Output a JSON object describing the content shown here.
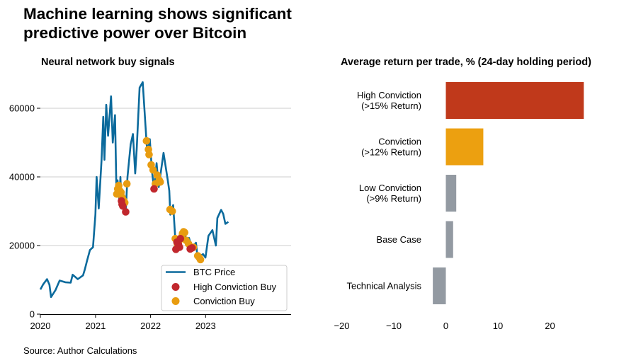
{
  "title": "Machine learning shows significant predictive power over Bitcoin",
  "source": "Source: Author Calculations",
  "colors": {
    "btc": "#0b6a9c",
    "high": "#c1272d",
    "conviction": "#e89c10",
    "grey": "#9498a0",
    "bar_high": "#c0391b",
    "bar_conv": "#eca010",
    "bar_other": "#939aa2",
    "grid": "#cccccc"
  },
  "chart_data": [
    {
      "type": "line",
      "title": "Neural network buy signals",
      "x_ticks": [
        "2020",
        "2021",
        "2022",
        "2023"
      ],
      "y_ticks": [
        "0",
        "20000",
        "40000",
        "60000"
      ],
      "xlim": [
        "2020-01-01",
        "2023-06-01"
      ],
      "ylim": [
        0,
        70000
      ],
      "grid": "horizontal",
      "legend": {
        "position": "bottom-right",
        "entries": [
          "BTC Price",
          "High Conviction Buy",
          "Conviction Buy"
        ]
      },
      "series": [
        {
          "name": "BTC Price",
          "points": [
            [
              "2020-01-01",
              7200
            ],
            [
              "2020-01-20",
              8700
            ],
            [
              "2020-02-14",
              10200
            ],
            [
              "2020-03-01",
              8600
            ],
            [
              "2020-03-12",
              5000
            ],
            [
              "2020-04-10",
              7000
            ],
            [
              "2020-05-08",
              9800
            ],
            [
              "2020-06-15",
              9300
            ],
            [
              "2020-07-20",
              9200
            ],
            [
              "2020-08-02",
              11500
            ],
            [
              "2020-09-05",
              10200
            ],
            [
              "2020-10-10",
              11300
            ],
            [
              "2020-10-21",
              12900
            ],
            [
              "2020-11-05",
              15500
            ],
            [
              "2020-11-25",
              18700
            ],
            [
              "2020-12-15",
              19500
            ],
            [
              "2020-12-31",
              29000
            ],
            [
              "2021-01-08",
              40000
            ],
            [
              "2021-01-22",
              30800
            ],
            [
              "2021-02-10",
              45000
            ],
            [
              "2021-02-21",
              57500
            ],
            [
              "2021-03-01",
              45000
            ],
            [
              "2021-03-13",
              61000
            ],
            [
              "2021-03-25",
              52000
            ],
            [
              "2021-04-14",
              63500
            ],
            [
              "2021-04-25",
              50000
            ],
            [
              "2021-05-10",
              58000
            ],
            [
              "2021-05-19",
              37000
            ],
            [
              "2021-05-27",
              39000
            ],
            [
              "2021-06-08",
              33000
            ],
            [
              "2021-06-15",
              40000
            ],
            [
              "2021-06-22",
              32000
            ],
            [
              "2021-07-05",
              35000
            ],
            [
              "2021-07-20",
              29800
            ],
            [
              "2021-08-01",
              40000
            ],
            [
              "2021-08-22",
              49500
            ],
            [
              "2021-09-06",
              52500
            ],
            [
              "2021-09-21",
              41000
            ],
            [
              "2021-10-01",
              48000
            ],
            [
              "2021-10-20",
              66000
            ],
            [
              "2021-11-10",
              67600
            ],
            [
              "2021-11-28",
              55000
            ],
            [
              "2021-12-10",
              47000
            ],
            [
              "2021-12-27",
              51000
            ],
            [
              "2022-01-10",
              41800
            ],
            [
              "2022-01-24",
              36500
            ],
            [
              "2022-02-10",
              44000
            ],
            [
              "2022-02-24",
              37000
            ],
            [
              "2022-03-28",
              47000
            ],
            [
              "2022-04-25",
              39000
            ],
            [
              "2022-05-05",
              36000
            ],
            [
              "2022-05-12",
              29000
            ],
            [
              "2022-05-31",
              31800
            ],
            [
              "2022-06-14",
              22000
            ],
            [
              "2022-06-18",
              19000
            ],
            [
              "2022-07-01",
              20000
            ],
            [
              "2022-07-30",
              23800
            ],
            [
              "2022-08-13",
              24300
            ],
            [
              "2022-09-07",
              19000
            ],
            [
              "2022-09-13",
              22200
            ],
            [
              "2022-10-01",
              19300
            ],
            [
              "2022-10-29",
              20800
            ],
            [
              "2022-11-09",
              16500
            ],
            [
              "2022-12-15",
              17500
            ],
            [
              "2022-12-31",
              16500
            ],
            [
              "2023-01-20",
              22800
            ],
            [
              "2023-02-15",
              24500
            ],
            [
              "2023-03-10",
              20000
            ],
            [
              "2023-03-20",
              28000
            ],
            [
              "2023-04-14",
              30400
            ],
            [
              "2023-04-28",
              29200
            ],
            [
              "2023-05-12",
              26300
            ],
            [
              "2023-05-25",
              26700
            ],
            [
              "2023-06-01",
              26900
            ]
          ]
        },
        {
          "name": "High Conviction Buy",
          "points": [
            [
              "2021-06-22",
              33000
            ],
            [
              "2021-06-26",
              32000
            ],
            [
              "2021-07-01",
              31500
            ],
            [
              "2021-07-20",
              29800
            ],
            [
              "2022-01-24",
              36500
            ],
            [
              "2022-06-18",
              18900
            ],
            [
              "2022-06-25",
              21000
            ],
            [
              "2022-07-05",
              20300
            ],
            [
              "2022-07-12",
              19500
            ],
            [
              "2022-07-18",
              22000
            ],
            [
              "2022-09-21",
              19000
            ],
            [
              "2022-10-03",
              19300
            ]
          ]
        },
        {
          "name": "Conviction Buy",
          "points": [
            [
              "2021-05-22",
              35000
            ],
            [
              "2021-05-28",
              36500
            ],
            [
              "2021-06-04",
              37500
            ],
            [
              "2021-06-10",
              36000
            ],
            [
              "2021-06-19",
              35500
            ],
            [
              "2021-06-27",
              34000
            ],
            [
              "2021-07-08",
              33000
            ],
            [
              "2021-07-14",
              32500
            ],
            [
              "2021-07-28",
              38000
            ],
            [
              "2021-12-05",
              50500
            ],
            [
              "2021-12-18",
              48000
            ],
            [
              "2021-12-22",
              46500
            ],
            [
              "2022-01-05",
              43500
            ],
            [
              "2022-01-18",
              42000
            ],
            [
              "2022-02-02",
              38000
            ],
            [
              "2022-02-14",
              40500
            ],
            [
              "2022-02-28",
              39000
            ],
            [
              "2022-03-06",
              38500
            ],
            [
              "2022-05-10",
              30500
            ],
            [
              "2022-05-25",
              30000
            ],
            [
              "2022-06-14",
              22000
            ],
            [
              "2022-06-28",
              20500
            ],
            [
              "2022-07-10",
              21500
            ],
            [
              "2022-07-26",
              22500
            ],
            [
              "2022-08-01",
              23500
            ],
            [
              "2022-08-08",
              24000
            ],
            [
              "2022-08-15",
              23800
            ],
            [
              "2022-08-25",
              21500
            ],
            [
              "2022-09-10",
              20500
            ],
            [
              "2022-10-12",
              19500
            ],
            [
              "2022-11-10",
              17000
            ],
            [
              "2022-11-20",
              16500
            ],
            [
              "2022-11-28",
              15900
            ]
          ]
        }
      ]
    },
    {
      "type": "bar",
      "orientation": "horizontal",
      "title": "Average return per trade, % (24-day holding period)",
      "categories": [
        "High Conviction\n(>15% Return)",
        "Conviction\n(>12% Return)",
        "Low Conviction\n(>9% Return)",
        "Base Case",
        "Technical Analysis"
      ],
      "values": [
        26.5,
        7.2,
        2.0,
        1.4,
        -2.5
      ],
      "x_ticks": [
        "−20",
        "−10",
        "0",
        "10",
        "20"
      ],
      "xlim": [
        -20,
        30
      ]
    }
  ]
}
